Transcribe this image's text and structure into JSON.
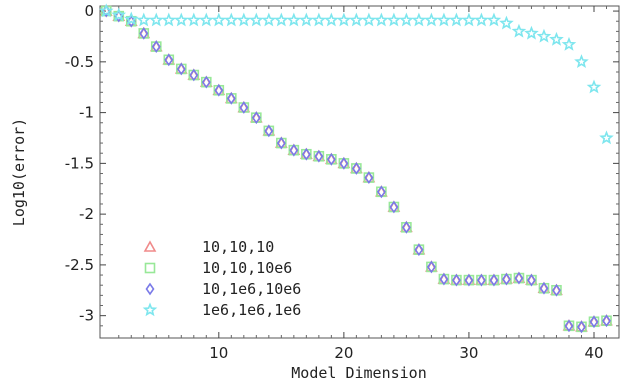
{
  "chart_data": {
    "type": "scatter",
    "title": "",
    "xlabel": "Model Dimension",
    "ylabel": "Log10(error)",
    "xlim": [
      0.5,
      42
    ],
    "ylim": [
      -3.22,
      0.05
    ],
    "xticks": [
      10,
      20,
      30,
      40
    ],
    "yticks": [
      0,
      -0.5,
      -1,
      -1.5,
      -2,
      -2.5,
      -3
    ],
    "ytick_labels": [
      "0",
      "-0.5",
      "-1",
      "-1.5",
      "-2",
      "-2.5",
      "-3"
    ],
    "grid": false,
    "legend_position": "bottom-left",
    "series": [
      {
        "name": "10,10,10",
        "marker": "triangle",
        "color": "#f08a8a",
        "x": [
          1,
          2,
          3,
          4,
          5,
          6,
          7,
          8,
          9,
          10,
          11,
          12,
          13,
          14,
          15,
          16,
          17,
          18,
          19,
          20,
          21,
          22,
          23,
          24,
          25,
          26,
          27,
          28,
          29,
          30,
          31,
          32,
          33,
          34,
          35,
          36,
          37,
          38,
          39,
          40,
          41
        ],
        "y": [
          0,
          -0.05,
          -0.1,
          -0.22,
          -0.35,
          -0.48,
          -0.57,
          -0.63,
          -0.7,
          -0.78,
          -0.86,
          -0.95,
          -1.05,
          -1.18,
          -1.3,
          -1.37,
          -1.41,
          -1.43,
          -1.46,
          -1.5,
          -1.55,
          -1.64,
          -1.78,
          -1.93,
          -2.13,
          -2.35,
          -2.52,
          -2.64,
          -2.65,
          -2.65,
          -2.65,
          -2.65,
          -2.64,
          -2.63,
          -2.65,
          -2.73,
          -2.75,
          -3.1,
          -3.11,
          -3.06,
          -3.05
        ]
      },
      {
        "name": "10,10,10e6",
        "marker": "square",
        "color": "#98e898",
        "x": [
          1,
          2,
          3,
          4,
          5,
          6,
          7,
          8,
          9,
          10,
          11,
          12,
          13,
          14,
          15,
          16,
          17,
          18,
          19,
          20,
          21,
          22,
          23,
          24,
          25,
          26,
          27,
          28,
          29,
          30,
          31,
          32,
          33,
          34,
          35,
          36,
          37,
          38,
          39,
          40,
          41
        ],
        "y": [
          0,
          -0.05,
          -0.1,
          -0.22,
          -0.35,
          -0.48,
          -0.57,
          -0.63,
          -0.7,
          -0.78,
          -0.86,
          -0.95,
          -1.05,
          -1.18,
          -1.3,
          -1.37,
          -1.41,
          -1.43,
          -1.46,
          -1.5,
          -1.55,
          -1.64,
          -1.78,
          -1.93,
          -2.13,
          -2.35,
          -2.52,
          -2.64,
          -2.65,
          -2.65,
          -2.65,
          -2.65,
          -2.64,
          -2.63,
          -2.65,
          -2.73,
          -2.75,
          -3.1,
          -3.11,
          -3.06,
          -3.05
        ]
      },
      {
        "name": "10,1e6,10e6",
        "marker": "diamond",
        "color": "#7a7ae8",
        "x": [
          1,
          2,
          3,
          4,
          5,
          6,
          7,
          8,
          9,
          10,
          11,
          12,
          13,
          14,
          15,
          16,
          17,
          18,
          19,
          20,
          21,
          22,
          23,
          24,
          25,
          26,
          27,
          28,
          29,
          30,
          31,
          32,
          33,
          34,
          35,
          36,
          37,
          38,
          39,
          40,
          41
        ],
        "y": [
          0,
          -0.05,
          -0.1,
          -0.22,
          -0.35,
          -0.48,
          -0.57,
          -0.63,
          -0.7,
          -0.78,
          -0.86,
          -0.95,
          -1.05,
          -1.18,
          -1.3,
          -1.37,
          -1.41,
          -1.43,
          -1.46,
          -1.5,
          -1.55,
          -1.64,
          -1.78,
          -1.93,
          -2.13,
          -2.35,
          -2.52,
          -2.64,
          -2.65,
          -2.65,
          -2.65,
          -2.65,
          -2.64,
          -2.63,
          -2.65,
          -2.73,
          -2.75,
          -3.1,
          -3.11,
          -3.06,
          -3.05
        ]
      },
      {
        "name": "1e6,1e6,1e6",
        "marker": "star",
        "color": "#7ee6ee",
        "x": [
          1,
          2,
          3,
          4,
          5,
          6,
          7,
          8,
          9,
          10,
          11,
          12,
          13,
          14,
          15,
          16,
          17,
          18,
          19,
          20,
          21,
          22,
          23,
          24,
          25,
          26,
          27,
          28,
          29,
          30,
          31,
          32,
          33,
          34,
          35,
          36,
          37,
          38,
          39,
          40,
          41
        ],
        "y": [
          0,
          -0.04,
          -0.08,
          -0.09,
          -0.09,
          -0.09,
          -0.09,
          -0.09,
          -0.09,
          -0.09,
          -0.09,
          -0.09,
          -0.09,
          -0.09,
          -0.09,
          -0.09,
          -0.09,
          -0.09,
          -0.09,
          -0.09,
          -0.09,
          -0.09,
          -0.09,
          -0.09,
          -0.09,
          -0.09,
          -0.09,
          -0.09,
          -0.09,
          -0.09,
          -0.09,
          -0.09,
          -0.12,
          -0.2,
          -0.22,
          -0.25,
          -0.28,
          -0.33,
          -0.5,
          -0.75,
          -1.25
        ]
      }
    ]
  }
}
